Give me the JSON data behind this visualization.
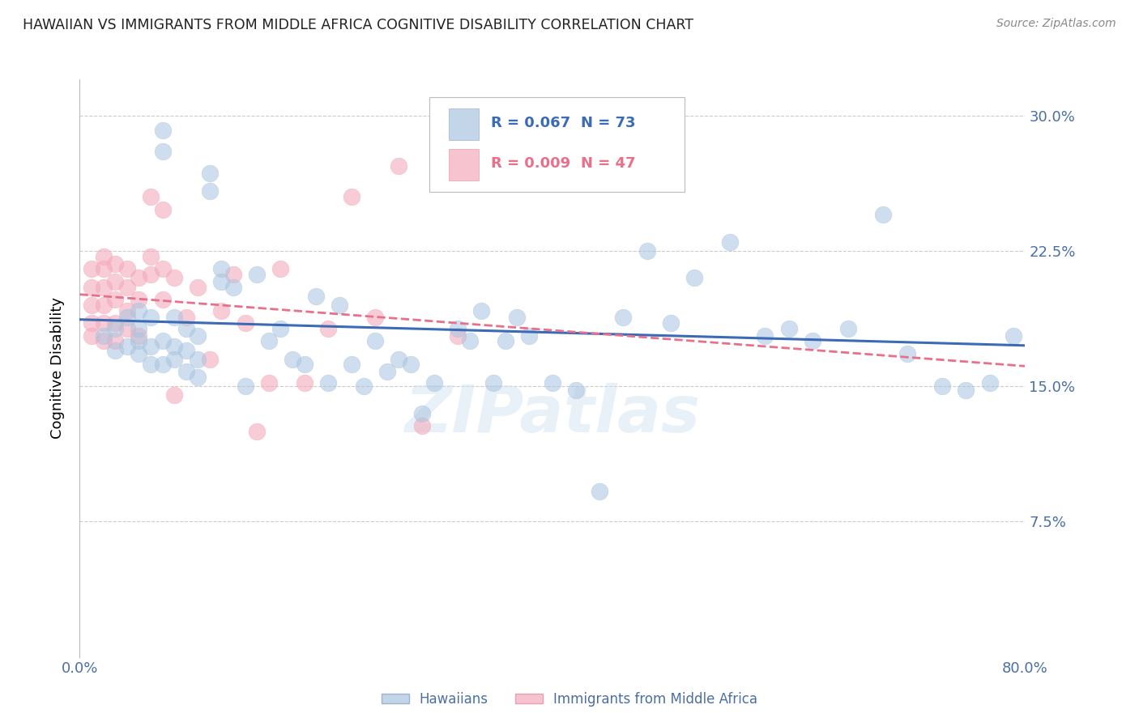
{
  "title": "HAWAIIAN VS IMMIGRANTS FROM MIDDLE AFRICA COGNITIVE DISABILITY CORRELATION CHART",
  "source": "Source: ZipAtlas.com",
  "ylabel": "Cognitive Disability",
  "watermark": "ZIPatlas",
  "xlim": [
    0.0,
    0.8
  ],
  "ylim": [
    0.0,
    0.32
  ],
  "yticks": [
    0.0,
    0.075,
    0.15,
    0.225,
    0.3
  ],
  "ytick_labels_left": [
    "",
    "",
    "",
    "",
    ""
  ],
  "ytick_labels_right": [
    "",
    "7.5%",
    "15.0%",
    "22.5%",
    "30.0%"
  ],
  "xticks": [
    0.0,
    0.1,
    0.2,
    0.3,
    0.4,
    0.5,
    0.6,
    0.7,
    0.8
  ],
  "xtick_labels": [
    "0.0%",
    "",
    "",
    "",
    "",
    "",
    "",
    "",
    "80.0%"
  ],
  "legend_r1": "R = 0.067",
  "legend_n1": "N = 73",
  "legend_r2": "R = 0.009",
  "legend_n2": "N = 47",
  "blue_color": "#A8C4E0",
  "pink_color": "#F4AABB",
  "line_blue": "#3B6BB5",
  "line_pink": "#E8708A",
  "axis_label_color": "#4A6FA5",
  "title_color": "#222222",
  "source_color": "#888888",
  "grid_color": "#CCCCCC",
  "hawaiians_x": [
    0.02,
    0.03,
    0.03,
    0.04,
    0.04,
    0.05,
    0.05,
    0.05,
    0.05,
    0.06,
    0.06,
    0.06,
    0.07,
    0.07,
    0.07,
    0.07,
    0.08,
    0.08,
    0.08,
    0.09,
    0.09,
    0.09,
    0.1,
    0.1,
    0.1,
    0.11,
    0.11,
    0.12,
    0.12,
    0.13,
    0.14,
    0.15,
    0.16,
    0.17,
    0.18,
    0.19,
    0.2,
    0.21,
    0.22,
    0.23,
    0.24,
    0.25,
    0.26,
    0.27,
    0.28,
    0.29,
    0.3,
    0.31,
    0.32,
    0.33,
    0.34,
    0.35,
    0.36,
    0.37,
    0.38,
    0.4,
    0.42,
    0.44,
    0.46,
    0.48,
    0.5,
    0.52,
    0.55,
    0.58,
    0.6,
    0.62,
    0.65,
    0.68,
    0.7,
    0.73,
    0.75,
    0.77,
    0.79
  ],
  "hawaiians_y": [
    0.178,
    0.182,
    0.17,
    0.188,
    0.172,
    0.192,
    0.175,
    0.182,
    0.168,
    0.188,
    0.172,
    0.162,
    0.292,
    0.28,
    0.175,
    0.162,
    0.188,
    0.172,
    0.165,
    0.182,
    0.17,
    0.158,
    0.178,
    0.165,
    0.155,
    0.268,
    0.258,
    0.215,
    0.208,
    0.205,
    0.15,
    0.212,
    0.175,
    0.182,
    0.165,
    0.162,
    0.2,
    0.152,
    0.195,
    0.162,
    0.15,
    0.175,
    0.158,
    0.165,
    0.162,
    0.135,
    0.152,
    0.295,
    0.182,
    0.175,
    0.192,
    0.152,
    0.175,
    0.188,
    0.178,
    0.152,
    0.148,
    0.092,
    0.188,
    0.225,
    0.185,
    0.21,
    0.23,
    0.178,
    0.182,
    0.175,
    0.182,
    0.245,
    0.168,
    0.15,
    0.148,
    0.152,
    0.178
  ],
  "immigrants_x": [
    0.01,
    0.01,
    0.01,
    0.01,
    0.01,
    0.02,
    0.02,
    0.02,
    0.02,
    0.02,
    0.02,
    0.03,
    0.03,
    0.03,
    0.03,
    0.03,
    0.04,
    0.04,
    0.04,
    0.04,
    0.05,
    0.05,
    0.05,
    0.06,
    0.06,
    0.06,
    0.07,
    0.07,
    0.07,
    0.08,
    0.08,
    0.09,
    0.1,
    0.11,
    0.12,
    0.13,
    0.14,
    0.15,
    0.16,
    0.17,
    0.19,
    0.21,
    0.23,
    0.25,
    0.27,
    0.29,
    0.32
  ],
  "immigrants_y": [
    0.215,
    0.205,
    0.195,
    0.185,
    0.178,
    0.222,
    0.215,
    0.205,
    0.195,
    0.185,
    0.175,
    0.218,
    0.208,
    0.198,
    0.185,
    0.175,
    0.215,
    0.205,
    0.192,
    0.182,
    0.21,
    0.198,
    0.178,
    0.255,
    0.222,
    0.212,
    0.248,
    0.215,
    0.198,
    0.21,
    0.145,
    0.188,
    0.205,
    0.165,
    0.192,
    0.212,
    0.185,
    0.125,
    0.152,
    0.215,
    0.152,
    0.182,
    0.255,
    0.188,
    0.272,
    0.128,
    0.178
  ]
}
